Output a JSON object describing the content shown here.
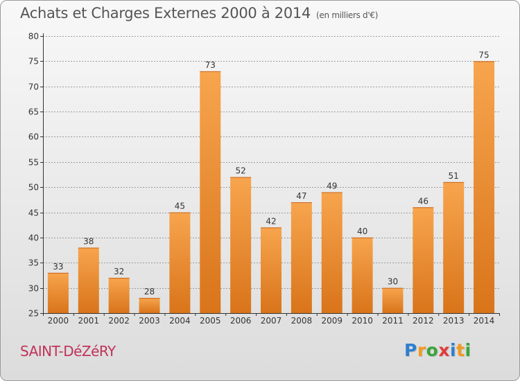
{
  "header": {
    "title": "Achats et Charges Externes 2000 à 2014",
    "subtitle": "(en milliers d'€)"
  },
  "footer": {
    "city": "SAINT-DéZéRY",
    "brand": [
      "P",
      "r",
      "o",
      "x",
      "i",
      "t",
      "i"
    ],
    "brand_colors": [
      "#2f7fd0",
      "#f29a1c",
      "#3aa53a",
      "#e33b3b",
      "#2f7fd0",
      "#f29a1c",
      "#3aa53a"
    ]
  },
  "colors": {
    "bar_light": "#f7a54e",
    "bar_dark": "#d9741a",
    "axis": "#333333",
    "grid": "#9a9a9a"
  },
  "chart_data": {
    "type": "bar",
    "categories": [
      "2000",
      "2001",
      "2002",
      "2003",
      "2004",
      "2005",
      "2006",
      "2007",
      "2008",
      "2009",
      "2010",
      "2011",
      "2012",
      "2013",
      "2014"
    ],
    "values": [
      33,
      38,
      32,
      28,
      45,
      73,
      52,
      42,
      47,
      49,
      40,
      30,
      46,
      51,
      75
    ],
    "ylim": [
      25,
      80
    ],
    "yticks": [
      25,
      30,
      35,
      40,
      45,
      50,
      55,
      60,
      65,
      70,
      75,
      80
    ],
    "grid": "horizontal dashed",
    "xlabel": "",
    "ylabel": ""
  }
}
